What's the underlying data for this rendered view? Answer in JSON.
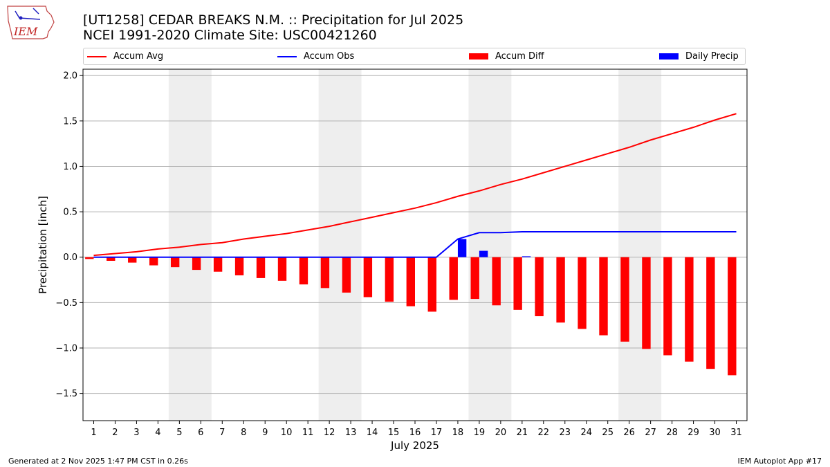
{
  "header": {
    "title_line1": "[UT1258] CEDAR BREAKS N.M. :: Precipitation for Jul 2025",
    "title_line2": "NCEI 1991-2020 Climate Site: USC00421260"
  },
  "logo": {
    "text": "IEM",
    "icon": "iowa-state-outline-icon"
  },
  "footer": {
    "left": "Generated at 2 Nov 2025 1:47 PM CST in 0.26s",
    "right": "IEM Autoplot App #17"
  },
  "legend": [
    {
      "label": "Accum Avg",
      "kind": "line",
      "color": "#ff0000"
    },
    {
      "label": "Accum Obs",
      "kind": "line",
      "color": "#0000ff"
    },
    {
      "label": "Accum Diff",
      "kind": "bar",
      "color": "#ff0000"
    },
    {
      "label": "Daily Precip",
      "kind": "bar",
      "color": "#0000ff"
    }
  ],
  "chart_data": {
    "type": "bar",
    "xlabel": "July 2025",
    "ylabel": "Precipitation [inch]",
    "ylim": [
      -1.8,
      2.07
    ],
    "xlim": [
      0.5,
      31.5
    ],
    "yticks": [
      -1.5,
      -1.0,
      -0.5,
      0.0,
      0.5,
      1.0,
      1.5,
      2.0
    ],
    "ytick_labels": [
      "−1.5",
      "−1.0",
      "−0.5",
      "0.0",
      "0.5",
      "1.0",
      "1.5",
      "2.0"
    ],
    "x": [
      1,
      2,
      3,
      4,
      5,
      6,
      7,
      8,
      9,
      10,
      11,
      12,
      13,
      14,
      15,
      16,
      17,
      18,
      19,
      20,
      21,
      22,
      23,
      24,
      25,
      26,
      27,
      28,
      29,
      30,
      31
    ],
    "weekend_shading": [
      [
        4.5,
        6.5
      ],
      [
        11.5,
        13.5
      ],
      [
        18.5,
        20.5
      ],
      [
        25.5,
        27.5
      ]
    ],
    "grid": "horizontal",
    "legend_position": "top",
    "series": [
      {
        "name": "Accum Avg",
        "type": "line",
        "color": "#ff0000",
        "values": [
          0.02,
          0.04,
          0.06,
          0.09,
          0.11,
          0.14,
          0.16,
          0.2,
          0.23,
          0.26,
          0.3,
          0.34,
          0.39,
          0.44,
          0.49,
          0.54,
          0.6,
          0.67,
          0.73,
          0.8,
          0.86,
          0.93,
          1.0,
          1.07,
          1.14,
          1.21,
          1.29,
          1.36,
          1.43,
          1.51,
          1.58
        ]
      },
      {
        "name": "Accum Obs",
        "type": "line",
        "color": "#0000ff",
        "values": [
          0,
          0,
          0,
          0,
          0,
          0,
          0,
          0,
          0,
          0,
          0,
          0,
          0,
          0,
          0,
          0,
          0,
          0.2,
          0.27,
          0.27,
          0.28,
          0.28,
          0.28,
          0.28,
          0.28,
          0.28,
          0.28,
          0.28,
          0.28,
          0.28,
          0.28
        ]
      },
      {
        "name": "Accum Diff",
        "type": "bar",
        "color": "#ff0000",
        "values": [
          -0.02,
          -0.04,
          -0.06,
          -0.09,
          -0.11,
          -0.14,
          -0.16,
          -0.2,
          -0.23,
          -0.26,
          -0.3,
          -0.34,
          -0.39,
          -0.44,
          -0.49,
          -0.54,
          -0.6,
          -0.47,
          -0.46,
          -0.53,
          -0.58,
          -0.65,
          -0.72,
          -0.79,
          -0.86,
          -0.93,
          -1.01,
          -1.08,
          -1.15,
          -1.23,
          -1.3
        ]
      },
      {
        "name": "Daily Precip",
        "type": "bar",
        "color": "#0000ff",
        "values": [
          0,
          0,
          0,
          0,
          0,
          0,
          0,
          0,
          0,
          0,
          0,
          0,
          0,
          0,
          0,
          0,
          0,
          0.2,
          0.07,
          0,
          0.01,
          0,
          0,
          0,
          0,
          0,
          0,
          0,
          0,
          0,
          0
        ]
      }
    ]
  }
}
